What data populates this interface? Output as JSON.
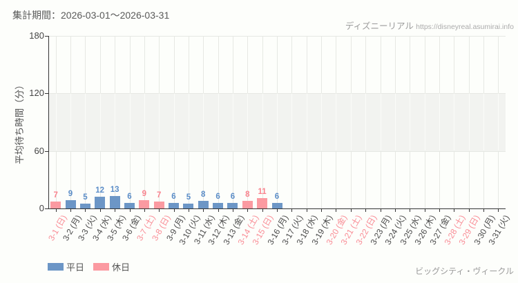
{
  "header": {
    "period": "集計期間：2026-03-01～2026-03-31",
    "watermark_site": "ディズニーリアル",
    "watermark_url": "https://disneyreal.asumirai.info"
  },
  "footer": {
    "attraction": "ビッグシティ・ヴィークル"
  },
  "legend": {
    "weekday_label": "平日",
    "holiday_label": "休日"
  },
  "colors": {
    "weekday_bar": "#6c96c6",
    "holiday_bar": "#fb9aa1",
    "weekday_value": "#5b8dc8",
    "holiday_value": "#f9838e",
    "weekday_tick": "#4a4a4a",
    "holiday_tick": "#f98c95",
    "axis": "#333333",
    "grid": "#e6e8e3",
    "grid_in_band": "#fbfcf9",
    "band": "#f2f3f0"
  },
  "chart_data": {
    "type": "bar",
    "title": "集計期間：2026-03-01～2026-03-31",
    "ylabel": "平均待ち時間（分）",
    "xlabel": "",
    "ylim": [
      0,
      180
    ],
    "yticks": [
      0,
      60,
      120,
      180
    ],
    "band": {
      "from": 60,
      "to": 120
    },
    "grid": "vertical gridline per category; shaded band between 60 and 120",
    "legend_position": "bottom-left",
    "legend_entries": [
      "平日",
      "休日"
    ],
    "categories": [
      "3-1 (日)",
      "3-2 (月)",
      "3-3 (火)",
      "3-4 (水)",
      "3-5 (木)",
      "3-6 (金)",
      "3-7 (土)",
      "3-8 (日)",
      "3-9 (月)",
      "3-10 (火)",
      "3-11 (水)",
      "3-12 (木)",
      "3-13 (金)",
      "3-14 (土)",
      "3-15 (日)",
      "3-16 (月)",
      "3-17 (火)",
      "3-18 (水)",
      "3-19 (木)",
      "3-20 (金)",
      "3-21 (土)",
      "3-22 (日)",
      "3-23 (月)",
      "3-24 (火)",
      "3-25 (水)",
      "3-26 (木)",
      "3-27 (金)",
      "3-28 (土)",
      "3-29 (日)",
      "3-30 (月)",
      "3-31 (火)"
    ],
    "day_types": [
      "holiday",
      "weekday",
      "weekday",
      "weekday",
      "weekday",
      "weekday",
      "holiday",
      "holiday",
      "weekday",
      "weekday",
      "weekday",
      "weekday",
      "weekday",
      "holiday",
      "holiday",
      "weekday",
      "weekday",
      "weekday",
      "weekday",
      "holiday",
      "holiday",
      "holiday",
      "weekday",
      "weekday",
      "weekday",
      "weekday",
      "weekday",
      "holiday",
      "holiday",
      "weekday",
      "weekday"
    ],
    "values": [
      7,
      9,
      5,
      12,
      13,
      6,
      9,
      7,
      6,
      5,
      8,
      6,
      6,
      8,
      11,
      6,
      null,
      null,
      null,
      null,
      null,
      null,
      null,
      null,
      null,
      null,
      null,
      null,
      null,
      null,
      null
    ]
  }
}
